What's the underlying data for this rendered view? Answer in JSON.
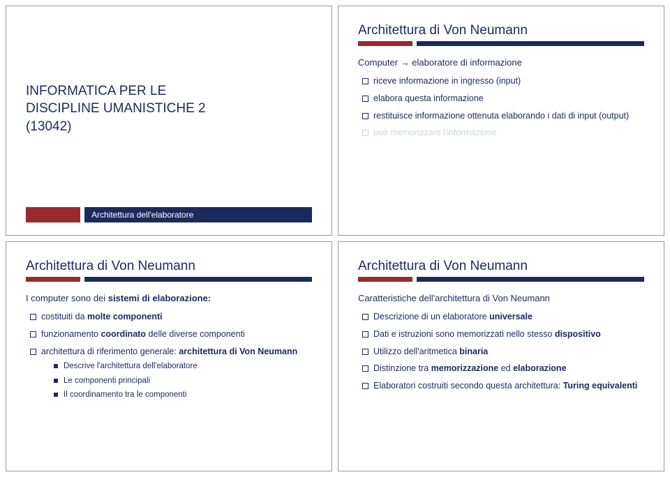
{
  "colors": {
    "navy": "#1a2a5c",
    "red": "#9a2a2a",
    "fadedText": "#cfd4e2",
    "background": "#ffffff",
    "border": "#999999"
  },
  "typography": {
    "titleFontSize": 19,
    "leadFontSize": 13,
    "bulletFontSize": 12.5,
    "subBulletFontSize": 11.5,
    "fontFamily": "Verdana"
  },
  "slide1": {
    "courseLine1": "INFORMATICA PER LE",
    "courseLine2": "DISCIPLINE UMANISTICHE 2",
    "courseLine3": "(13042)",
    "subtitle": "Architettura dell'elaboratore"
  },
  "slide2": {
    "title": "Architettura di Von Neumann",
    "lead": "Computer → elaboratore di informazione",
    "b1": "riceve informazione in ingresso (input)",
    "b2": "elabora questa informazione",
    "b3": "restituisce informazione ottenuta elaborando i dati di input (output)",
    "b4": "può memorizzare l'informazione"
  },
  "slide3": {
    "title": "Architettura di Von Neumann",
    "lead_pre": "I computer sono dei ",
    "lead_bold": "sistemi di elaborazione:",
    "b1_pre": "costituiti da ",
    "b1_bold": "molte componenti",
    "b2_pre": "funzionamento ",
    "b2_bold": "coordinato",
    "b2_post": " delle diverse componenti",
    "b3_pre": "architettura di riferimento generale: ",
    "b3_bold": "architettura di Von Neumann",
    "s1": "Descrive l'architettura dell'elaboratore",
    "s2": "Le componenti principali",
    "s3": "Il coordinamento tra le componenti"
  },
  "slide4": {
    "title": "Architettura di Von Neumann",
    "lead": "Caratteristiche dell'architettura di Von Neumann",
    "b1_pre": "Descrizione di un elaboratore ",
    "b1_bold": "universale",
    "b2_pre": "Dati e istruzioni sono memorizzati nello stesso ",
    "b2_bold": "dispositivo",
    "b3_pre": "Utilizzo dell'aritmetica ",
    "b3_bold": "binaria",
    "b4_pre": "Distinzione tra ",
    "b4_bold1": "memorizzazione",
    "b4_mid": " ed ",
    "b4_bold2": "elaborazione",
    "b5_pre": "Elaboratori costruiti secondo questa architettura: ",
    "b5_bold": "Turing equivalenti"
  }
}
